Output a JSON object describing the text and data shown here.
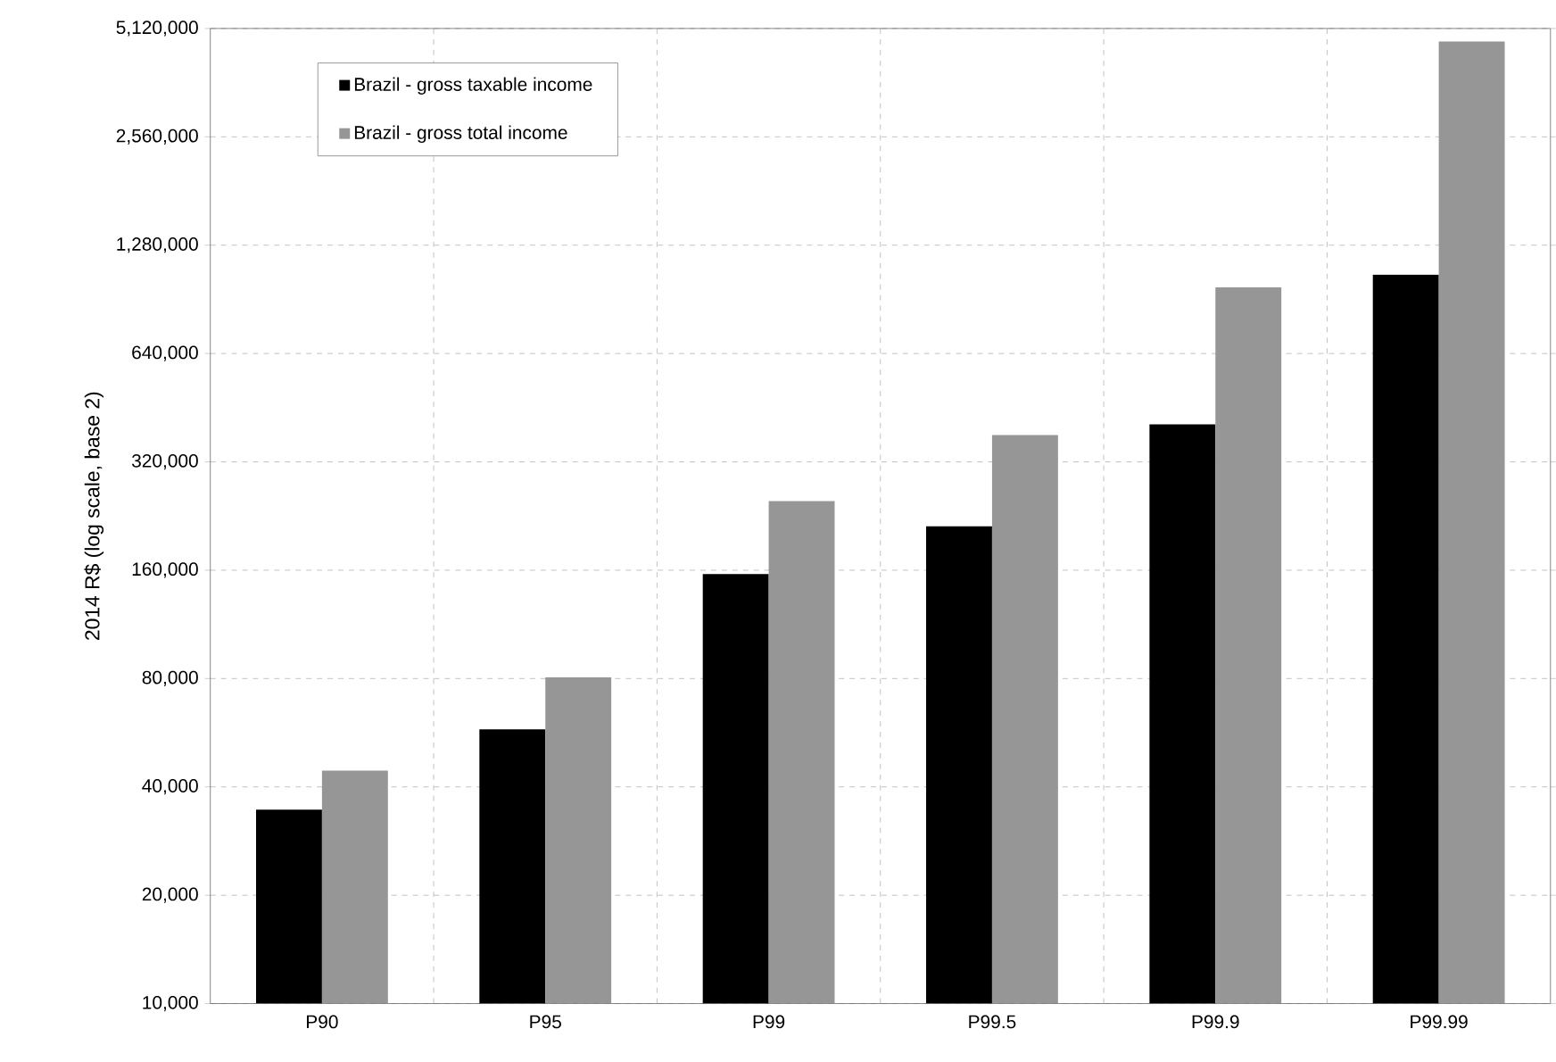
{
  "chart_data": {
    "type": "bar",
    "ylabel": "2014 R$ (log scale, base 2)",
    "log": "y",
    "grid": true,
    "legend": "top left",
    "categories": [
      "P90",
      "P95",
      "P99",
      "P99.5",
      "P99.9",
      "P99.99"
    ],
    "series": [
      {
        "name": "Brazil - gross taxable income",
        "color": "#000000",
        "values": [
          34600,
          57800,
          156000,
          212000,
          407000,
          1060000
        ]
      },
      {
        "name": "Brazil - gross total income",
        "color": "#969696",
        "values": [
          44400,
          80600,
          249000,
          380000,
          977000,
          4710000
        ]
      }
    ],
    "ylim": [
      10000,
      5120000
    ],
    "yticks": [
      {
        "value": 10000,
        "label": "10,000"
      },
      {
        "value": 20000,
        "label": "20,000"
      },
      {
        "value": 40000,
        "label": "40,000"
      },
      {
        "value": 80000,
        "label": "80,000"
      },
      {
        "value": 160000,
        "label": "160,000"
      },
      {
        "value": 320000,
        "label": "320,000"
      },
      {
        "value": 640000,
        "label": "640,000"
      },
      {
        "value": 1280000,
        "label": "1,280,000"
      },
      {
        "value": 2560000,
        "label": "2,560,000"
      },
      {
        "value": 5120000,
        "label": "5,120,000"
      }
    ]
  }
}
